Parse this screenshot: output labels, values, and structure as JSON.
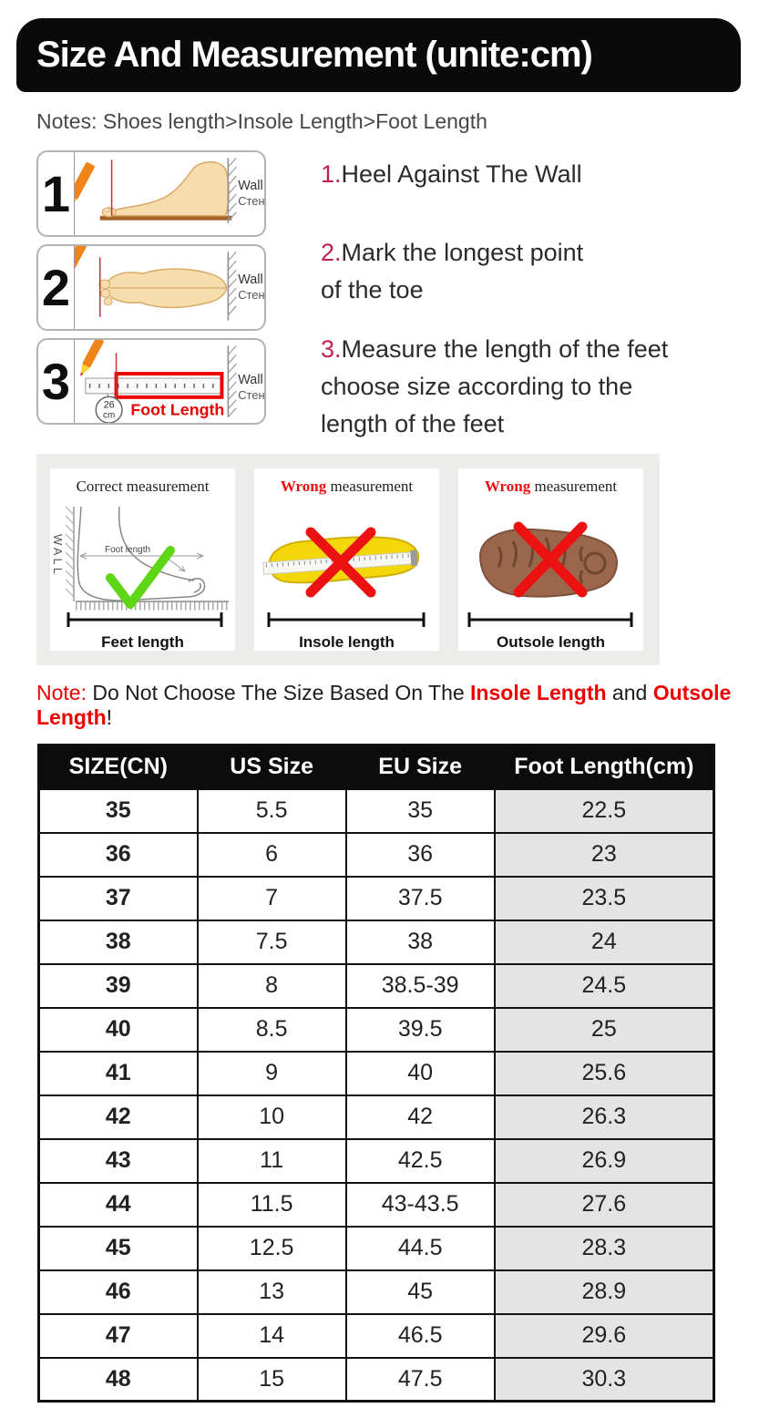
{
  "page": {
    "title": "Size And Measurement (unite:cm)",
    "notes": "Notes: Shoes length>Insole Length>Foot Length"
  },
  "steps": [
    {
      "num": "1",
      "wall_en": "Wall",
      "wall_ru": "Стена"
    },
    {
      "num": "2",
      "wall_en": "Wall",
      "wall_ru": "Стена"
    },
    {
      "num": "3",
      "wall_en": "Wall",
      "wall_ru": "Стена",
      "ruler_value": "26",
      "ruler_unit": "cm",
      "ruler_label": "Foot Length"
    }
  ],
  "instructions": [
    {
      "num": "1.",
      "text": "Heel Against The Wall"
    },
    {
      "num": "2.",
      "text": "Mark the longest point\nof the toe"
    },
    {
      "num": "3.",
      "text": "Measure the length of the feet\nchoose size according to the\nlength of the feet"
    }
  ],
  "panels": [
    {
      "title_red": "",
      "title_main": "Correct measurement",
      "wall_vertical": "WALL",
      "inner_label": "Foot length",
      "bottom_label": "Feet length",
      "result": "correct"
    },
    {
      "title_red": "Wrong",
      "title_main": " measurement",
      "bottom_label": "Insole length",
      "result": "wrong"
    },
    {
      "title_red": "Wrong",
      "title_main": " measurement",
      "bottom_label": "Outsole length",
      "result": "wrong"
    }
  ],
  "note": {
    "prefix": "Note:",
    "body": " Do Not Choose The Size Based On The ",
    "red1": "Insole Length",
    "mid": " and ",
    "red2": "Outsole Length",
    "suffix": "!"
  },
  "table": {
    "headers": [
      "SIZE(CN)",
      "US Size",
      "EU Size",
      "Foot Length(cm)"
    ],
    "rows": [
      [
        "35",
        "5.5",
        "35",
        "22.5"
      ],
      [
        "36",
        "6",
        "36",
        "23"
      ],
      [
        "37",
        "7",
        "37.5",
        "23.5"
      ],
      [
        "38",
        "7.5",
        "38",
        "24"
      ],
      [
        "39",
        "8",
        "38.5-39",
        "24.5"
      ],
      [
        "40",
        "8.5",
        "39.5",
        "25"
      ],
      [
        "41",
        "9",
        "40",
        "25.6"
      ],
      [
        "42",
        "10",
        "42",
        "26.3"
      ],
      [
        "43",
        "11",
        "42.5",
        "26.9"
      ],
      [
        "44",
        "11.5",
        "43-43.5",
        "27.6"
      ],
      [
        "45",
        "12.5",
        "44.5",
        "28.3"
      ],
      [
        "46",
        "13",
        "45",
        "28.9"
      ],
      [
        "47",
        "14",
        "46.5",
        "29.6"
      ],
      [
        "48",
        "15",
        "47.5",
        "30.3"
      ]
    ]
  },
  "colors": {
    "banner_bg": "#0a0a0a",
    "step_number_red": "#c0204e",
    "warning_red": "#ee0000",
    "check_green": "#5fd615",
    "insole_yellow": "#f3d70b",
    "outsole_brown": "#9a674c",
    "table_header_bg": "#0c0c0c",
    "foot_length_col_bg": "#e4e4e4"
  }
}
